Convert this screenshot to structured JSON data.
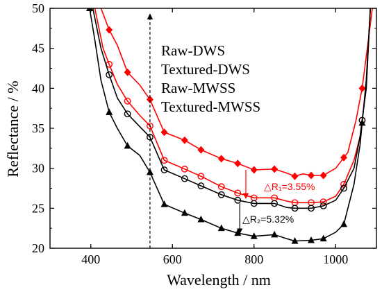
{
  "chart_data": {
    "type": "line",
    "xlabel": "Wavelength / nm",
    "ylabel": "Reflectance / %",
    "xlim": [
      300,
      1100
    ],
    "ylim": [
      20,
      50
    ],
    "xticks": [
      400,
      600,
      800,
      1000
    ],
    "yticks": [
      20,
      25,
      30,
      35,
      40,
      45,
      50
    ],
    "xtick_labels": [
      "400",
      "600",
      "800",
      "1000"
    ],
    "ytick_labels": [
      "20",
      "25",
      "30",
      "35",
      "40",
      "45",
      "50"
    ],
    "grid": false,
    "legend": {
      "placement": "top-center",
      "entries": [
        "Raw-DWS",
        "Textured-DWS",
        "Raw-MWSS",
        "Textured-MWSS"
      ]
    },
    "series": [
      {
        "name": "Raw-DWS",
        "color": "#ff0000",
        "marker": "diamond",
        "points": [
          [
            425,
            50
          ],
          [
            445,
            47.3
          ],
          [
            465,
            45.4
          ],
          [
            490,
            42.0
          ],
          [
            520,
            40.4
          ],
          [
            545,
            38.6
          ],
          [
            580,
            34.5
          ],
          [
            630,
            33.5
          ],
          [
            670,
            32.3
          ],
          [
            720,
            31.2
          ],
          [
            760,
            30.6
          ],
          [
            800,
            29.8
          ],
          [
            850,
            29.9
          ],
          [
            880,
            29.4
          ],
          [
            900,
            29.0
          ],
          [
            920,
            29.3
          ],
          [
            940,
            29.1
          ],
          [
            970,
            29.1
          ],
          [
            1000,
            30.0
          ],
          [
            1030,
            32.0
          ],
          [
            1050,
            36.0
          ],
          [
            1065,
            40.0
          ],
          [
            1080,
            46.0
          ],
          [
            1090,
            50
          ]
        ],
        "markers_x": [
          445,
          490,
          545,
          580,
          630,
          670,
          720,
          760,
          800,
          850,
          900,
          940,
          970,
          1020,
          1065
        ]
      },
      {
        "name": "Textured-DWS",
        "color": "#ff0000",
        "marker": "circle",
        "points": [
          [
            410,
            50
          ],
          [
            430,
            45.0
          ],
          [
            445,
            43.0
          ],
          [
            465,
            40.5
          ],
          [
            490,
            38.4
          ],
          [
            520,
            36.6
          ],
          [
            545,
            35.3
          ],
          [
            580,
            31.0
          ],
          [
            630,
            29.9
          ],
          [
            670,
            29.0
          ],
          [
            720,
            27.7
          ],
          [
            760,
            26.9
          ],
          [
            800,
            26.3
          ],
          [
            850,
            26.3
          ],
          [
            880,
            25.9
          ],
          [
            900,
            25.7
          ],
          [
            940,
            25.7
          ],
          [
            970,
            25.8
          ],
          [
            1000,
            26.5
          ],
          [
            1020,
            28.0
          ],
          [
            1045,
            31.0
          ],
          [
            1060,
            34.0
          ],
          [
            1075,
            40.0
          ],
          [
            1085,
            50
          ]
        ],
        "markers_x": [
          445,
          490,
          545,
          580,
          630,
          670,
          720,
          760,
          800,
          850,
          900,
          940,
          970,
          1020,
          1065
        ]
      },
      {
        "name": "Raw-MWSS",
        "color": "#000000",
        "marker": "circle",
        "points": [
          [
            405,
            50
          ],
          [
            425,
            45.0
          ],
          [
            445,
            41.7
          ],
          [
            465,
            38.8
          ],
          [
            490,
            36.8
          ],
          [
            520,
            35.2
          ],
          [
            545,
            33.9
          ],
          [
            580,
            29.8
          ],
          [
            630,
            28.7
          ],
          [
            670,
            27.8
          ],
          [
            720,
            26.7
          ],
          [
            760,
            26.0
          ],
          [
            800,
            25.6
          ],
          [
            850,
            25.6
          ],
          [
            880,
            25.1
          ],
          [
            900,
            25.0
          ],
          [
            940,
            25.0
          ],
          [
            970,
            25.3
          ],
          [
            1000,
            26.0
          ],
          [
            1020,
            27.5
          ],
          [
            1045,
            30.0
          ],
          [
            1060,
            34.0
          ],
          [
            1075,
            40.0
          ],
          [
            1085,
            50
          ]
        ],
        "markers_x": [
          445,
          490,
          545,
          580,
          630,
          670,
          720,
          760,
          800,
          850,
          900,
          940,
          970,
          1020,
          1065
        ]
      },
      {
        "name": "Textured-MWSS",
        "color": "#000000",
        "marker": "triangle",
        "points": [
          [
            397,
            50
          ],
          [
            410,
            46.0
          ],
          [
            425,
            41.0
          ],
          [
            445,
            37.0
          ],
          [
            465,
            35.0
          ],
          [
            490,
            32.8
          ],
          [
            520,
            31.6
          ],
          [
            545,
            29.5
          ],
          [
            580,
            25.5
          ],
          [
            630,
            24.4
          ],
          [
            670,
            23.6
          ],
          [
            720,
            22.5
          ],
          [
            760,
            21.9
          ],
          [
            800,
            21.5
          ],
          [
            850,
            21.7
          ],
          [
            880,
            21.2
          ],
          [
            900,
            20.9
          ],
          [
            940,
            21.0
          ],
          [
            970,
            21.2
          ],
          [
            1000,
            22.0
          ],
          [
            1020,
            23.0
          ],
          [
            1045,
            28.0
          ],
          [
            1060,
            33.0
          ],
          [
            1075,
            41.0
          ],
          [
            1085,
            50
          ]
        ],
        "markers_x": [
          397,
          445,
          490,
          545,
          580,
          630,
          670,
          720,
          760,
          800,
          850,
          900,
          940,
          970,
          1020,
          1065
        ]
      }
    ],
    "annotations": [
      {
        "text": "△R₁=3.55%",
        "color": "#ff0000",
        "arrow_x": 780,
        "y_from": 29.8,
        "y_to": 26.3
      },
      {
        "text": "△R₂=5.32%",
        "color": "#000000",
        "arrow_x": 765,
        "y_from": 25.6,
        "y_to": 21.9
      }
    ],
    "guide_arrow": {
      "x": 545,
      "y_from": 20,
      "y_to": 49.2
    }
  }
}
